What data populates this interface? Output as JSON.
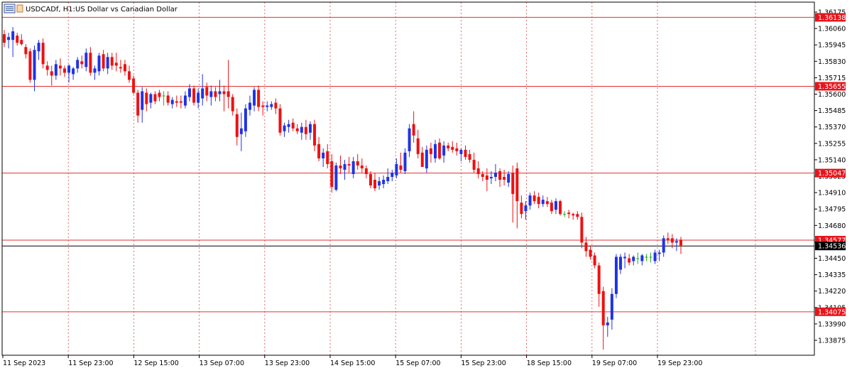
{
  "header": {
    "symbol_label": "USDCADf, H1:",
    "description": "US Dollar vs Canadian Dollar",
    "menu_icon": "chart-window-menu-icon"
  },
  "colors": {
    "bull": "#1f33e6",
    "bear": "#ee1111",
    "doji": "#22aa22",
    "level_line": "#e23030",
    "current_price_line": "#000000",
    "grid": "#e24a4a",
    "frame": "#000000",
    "level_tag_bg": "#e8141b",
    "current_tag_bg": "#000000"
  },
  "chart_data": {
    "type": "candlestick",
    "title": "",
    "xlabel": "",
    "ylabel": "",
    "ylim": [
      1.3379,
      1.3618
    ],
    "yticks": [
      "1.36175",
      "1.36060",
      "1.35945",
      "1.35830",
      "1.35715",
      "1.35600",
      "1.35485",
      "1.35370",
      "1.35255",
      "1.35140",
      "1.35025",
      "1.34910",
      "1.34795",
      "1.34680",
      "1.34565",
      "1.34450",
      "1.34335",
      "1.34220",
      "1.34105",
      "1.33990",
      "1.33875"
    ],
    "xticks": [
      "11 Sep 2023",
      "11 Sep 23:00",
      "12 Sep 15:00",
      "13 Sep 07:00",
      "13 Sep 23:00",
      "14 Sep 15:00",
      "15 Sep 07:00",
      "15 Sep 23:00",
      "18 Sep 15:00",
      "19 Sep 07:00",
      "19 Sep 23:00"
    ],
    "grid": true,
    "levels": [
      "1.36138",
      "1.35655",
      "1.35047",
      "1.34577",
      "1.34075"
    ],
    "current_price": "1.34536",
    "candles": [
      {
        "o": 1.3602,
        "h": 1.3605,
        "l": 1.3593,
        "c": 1.3596
      },
      {
        "o": 1.3598,
        "h": 1.3603,
        "l": 1.3592,
        "c": 1.36
      },
      {
        "o": 1.3598,
        "h": 1.3607,
        "l": 1.3586,
        "c": 1.3604
      },
      {
        "o": 1.3601,
        "h": 1.3603,
        "l": 1.3594,
        "c": 1.3596
      },
      {
        "o": 1.3598,
        "h": 1.3602,
        "l": 1.3594,
        "c": 1.3595
      },
      {
        "o": 1.3593,
        "h": 1.3595,
        "l": 1.3585,
        "c": 1.3588
      },
      {
        "o": 1.359,
        "h": 1.3592,
        "l": 1.3568,
        "c": 1.357
      },
      {
        "o": 1.357,
        "h": 1.3594,
        "l": 1.3562,
        "c": 1.3591
      },
      {
        "o": 1.359,
        "h": 1.3598,
        "l": 1.3584,
        "c": 1.3596
      },
      {
        "o": 1.3596,
        "h": 1.3599,
        "l": 1.3578,
        "c": 1.3581
      },
      {
        "o": 1.358,
        "h": 1.3583,
        "l": 1.3573,
        "c": 1.3577
      },
      {
        "o": 1.3576,
        "h": 1.358,
        "l": 1.3566,
        "c": 1.3573
      },
      {
        "o": 1.3573,
        "h": 1.3584,
        "l": 1.357,
        "c": 1.3581
      },
      {
        "o": 1.358,
        "h": 1.3585,
        "l": 1.3573,
        "c": 1.3578
      },
      {
        "o": 1.3578,
        "h": 1.358,
        "l": 1.3572,
        "c": 1.3575
      },
      {
        "o": 1.3575,
        "h": 1.3581,
        "l": 1.3568,
        "c": 1.358
      },
      {
        "o": 1.3574,
        "h": 1.3579,
        "l": 1.357,
        "c": 1.3578
      },
      {
        "o": 1.3578,
        "h": 1.3586,
        "l": 1.3575,
        "c": 1.3584
      },
      {
        "o": 1.3583,
        "h": 1.3587,
        "l": 1.3578,
        "c": 1.3581
      },
      {
        "o": 1.3579,
        "h": 1.3592,
        "l": 1.3576,
        "c": 1.3589
      },
      {
        "o": 1.3589,
        "h": 1.3593,
        "l": 1.3573,
        "c": 1.3575
      },
      {
        "o": 1.3575,
        "h": 1.358,
        "l": 1.357,
        "c": 1.3578
      },
      {
        "o": 1.3576,
        "h": 1.3589,
        "l": 1.3573,
        "c": 1.3587
      },
      {
        "o": 1.3588,
        "h": 1.3591,
        "l": 1.3576,
        "c": 1.3578
      },
      {
        "o": 1.3578,
        "h": 1.3589,
        "l": 1.3574,
        "c": 1.3586
      },
      {
        "o": 1.3586,
        "h": 1.3589,
        "l": 1.3577,
        "c": 1.358
      },
      {
        "o": 1.3582,
        "h": 1.3589,
        "l": 1.3576,
        "c": 1.358
      },
      {
        "o": 1.3579,
        "h": 1.3584,
        "l": 1.3575,
        "c": 1.3578
      },
      {
        "o": 1.3581,
        "h": 1.3584,
        "l": 1.3573,
        "c": 1.3576
      },
      {
        "o": 1.3576,
        "h": 1.358,
        "l": 1.3568,
        "c": 1.357
      },
      {
        "o": 1.3571,
        "h": 1.3573,
        "l": 1.356,
        "c": 1.3561
      },
      {
        "o": 1.3561,
        "h": 1.3563,
        "l": 1.354,
        "c": 1.3545
      },
      {
        "o": 1.3549,
        "h": 1.3565,
        "l": 1.354,
        "c": 1.3562
      },
      {
        "o": 1.3561,
        "h": 1.3564,
        "l": 1.3548,
        "c": 1.3553
      },
      {
        "o": 1.3554,
        "h": 1.3561,
        "l": 1.355,
        "c": 1.356
      },
      {
        "o": 1.356,
        "h": 1.3562,
        "l": 1.3553,
        "c": 1.3555
      },
      {
        "o": 1.3561,
        "h": 1.3563,
        "l": 1.3555,
        "c": 1.3558
      },
      {
        "o": 1.3559,
        "h": 1.3562,
        "l": 1.3552,
        "c": 1.3559
      },
      {
        "o": 1.3559,
        "h": 1.3562,
        "l": 1.3552,
        "c": 1.3554
      },
      {
        "o": 1.3553,
        "h": 1.3558,
        "l": 1.355,
        "c": 1.3556
      },
      {
        "o": 1.3555,
        "h": 1.3559,
        "l": 1.3551,
        "c": 1.3554
      },
      {
        "o": 1.3555,
        "h": 1.3559,
        "l": 1.355,
        "c": 1.3554
      },
      {
        "o": 1.3552,
        "h": 1.3562,
        "l": 1.355,
        "c": 1.3559
      },
      {
        "o": 1.3558,
        "h": 1.3567,
        "l": 1.3555,
        "c": 1.3564
      },
      {
        "o": 1.3564,
        "h": 1.3566,
        "l": 1.3552,
        "c": 1.3554
      },
      {
        "o": 1.3554,
        "h": 1.3564,
        "l": 1.355,
        "c": 1.3561
      },
      {
        "o": 1.3557,
        "h": 1.3574,
        "l": 1.3552,
        "c": 1.3564
      },
      {
        "o": 1.3565,
        "h": 1.3568,
        "l": 1.3555,
        "c": 1.3559
      },
      {
        "o": 1.3558,
        "h": 1.3566,
        "l": 1.3552,
        "c": 1.3562
      },
      {
        "o": 1.3562,
        "h": 1.3565,
        "l": 1.3555,
        "c": 1.3558
      },
      {
        "o": 1.356,
        "h": 1.357,
        "l": 1.3555,
        "c": 1.3562
      },
      {
        "o": 1.3562,
        "h": 1.3566,
        "l": 1.3548,
        "c": 1.356
      },
      {
        "o": 1.3562,
        "h": 1.3584,
        "l": 1.355,
        "c": 1.3558
      },
      {
        "o": 1.3558,
        "h": 1.356,
        "l": 1.3545,
        "c": 1.3548
      },
      {
        "o": 1.3546,
        "h": 1.355,
        "l": 1.3524,
        "c": 1.353
      },
      {
        "o": 1.3532,
        "h": 1.3547,
        "l": 1.352,
        "c": 1.3536
      },
      {
        "o": 1.3534,
        "h": 1.3553,
        "l": 1.353,
        "c": 1.355
      },
      {
        "o": 1.3549,
        "h": 1.3559,
        "l": 1.3545,
        "c": 1.3554
      },
      {
        "o": 1.3552,
        "h": 1.3565,
        "l": 1.3548,
        "c": 1.3563
      },
      {
        "o": 1.3563,
        "h": 1.3566,
        "l": 1.3548,
        "c": 1.3551
      },
      {
        "o": 1.3552,
        "h": 1.3555,
        "l": 1.3545,
        "c": 1.3551
      },
      {
        "o": 1.3551,
        "h": 1.3555,
        "l": 1.3548,
        "c": 1.3552
      },
      {
        "o": 1.3551,
        "h": 1.3555,
        "l": 1.3549,
        "c": 1.3553
      },
      {
        "o": 1.3554,
        "h": 1.3557,
        "l": 1.3546,
        "c": 1.355
      },
      {
        "o": 1.355,
        "h": 1.3553,
        "l": 1.3531,
        "c": 1.3533
      },
      {
        "o": 1.3534,
        "h": 1.354,
        "l": 1.353,
        "c": 1.3538
      },
      {
        "o": 1.3537,
        "h": 1.3542,
        "l": 1.3533,
        "c": 1.3539
      },
      {
        "o": 1.354,
        "h": 1.3543,
        "l": 1.3534,
        "c": 1.3536
      },
      {
        "o": 1.3536,
        "h": 1.3539,
        "l": 1.3532,
        "c": 1.3534
      },
      {
        "o": 1.3533,
        "h": 1.354,
        "l": 1.3528,
        "c": 1.3537
      },
      {
        "o": 1.3537,
        "h": 1.3542,
        "l": 1.3528,
        "c": 1.3532
      },
      {
        "o": 1.3533,
        "h": 1.3541,
        "l": 1.3528,
        "c": 1.3539
      },
      {
        "o": 1.3539,
        "h": 1.3542,
        "l": 1.352,
        "c": 1.3524
      },
      {
        "o": 1.3525,
        "h": 1.353,
        "l": 1.3513,
        "c": 1.3515
      },
      {
        "o": 1.3515,
        "h": 1.3522,
        "l": 1.3509,
        "c": 1.3519
      },
      {
        "o": 1.352,
        "h": 1.3525,
        "l": 1.3508,
        "c": 1.3511
      },
      {
        "o": 1.3513,
        "h": 1.3518,
        "l": 1.3491,
        "c": 1.3495
      },
      {
        "o": 1.3493,
        "h": 1.3512,
        "l": 1.3492,
        "c": 1.351
      },
      {
        "o": 1.351,
        "h": 1.3517,
        "l": 1.3504,
        "c": 1.3508
      },
      {
        "o": 1.3507,
        "h": 1.3514,
        "l": 1.35,
        "c": 1.3511
      },
      {
        "o": 1.3511,
        "h": 1.3516,
        "l": 1.3505,
        "c": 1.351
      },
      {
        "o": 1.3504,
        "h": 1.3516,
        "l": 1.3501,
        "c": 1.3513
      },
      {
        "o": 1.3513,
        "h": 1.3518,
        "l": 1.3507,
        "c": 1.351
      },
      {
        "o": 1.351,
        "h": 1.3515,
        "l": 1.3505,
        "c": 1.3508
      },
      {
        "o": 1.3508,
        "h": 1.351,
        "l": 1.3501,
        "c": 1.3504
      },
      {
        "o": 1.3504,
        "h": 1.3506,
        "l": 1.3494,
        "c": 1.3496
      },
      {
        "o": 1.35,
        "h": 1.3505,
        "l": 1.3492,
        "c": 1.3494
      },
      {
        "o": 1.3496,
        "h": 1.3502,
        "l": 1.3493,
        "c": 1.3499
      },
      {
        "o": 1.3497,
        "h": 1.3503,
        "l": 1.3494,
        "c": 1.35
      },
      {
        "o": 1.3499,
        "h": 1.3508,
        "l": 1.3497,
        "c": 1.3502
      },
      {
        "o": 1.3502,
        "h": 1.3507,
        "l": 1.3499,
        "c": 1.3505
      },
      {
        "o": 1.3503,
        "h": 1.3515,
        "l": 1.3501,
        "c": 1.3511
      },
      {
        "o": 1.351,
        "h": 1.3519,
        "l": 1.3505,
        "c": 1.3507
      },
      {
        "o": 1.3506,
        "h": 1.3522,
        "l": 1.3504,
        "c": 1.3519
      },
      {
        "o": 1.352,
        "h": 1.3539,
        "l": 1.3516,
        "c": 1.3536
      },
      {
        "o": 1.3539,
        "h": 1.3548,
        "l": 1.3526,
        "c": 1.3531
      },
      {
        "o": 1.3529,
        "h": 1.3535,
        "l": 1.3515,
        "c": 1.3518
      },
      {
        "o": 1.3519,
        "h": 1.3523,
        "l": 1.3509,
        "c": 1.3509
      },
      {
        "o": 1.3508,
        "h": 1.3524,
        "l": 1.3505,
        "c": 1.3521
      },
      {
        "o": 1.3522,
        "h": 1.3526,
        "l": 1.3512,
        "c": 1.3518
      },
      {
        "o": 1.3515,
        "h": 1.3528,
        "l": 1.3512,
        "c": 1.3525
      },
      {
        "o": 1.3526,
        "h": 1.3529,
        "l": 1.3514,
        "c": 1.3515
      },
      {
        "o": 1.3517,
        "h": 1.3527,
        "l": 1.3512,
        "c": 1.3524
      },
      {
        "o": 1.3524,
        "h": 1.3526,
        "l": 1.352,
        "c": 1.3522
      },
      {
        "o": 1.3523,
        "h": 1.3527,
        "l": 1.3519,
        "c": 1.3521
      },
      {
        "o": 1.3522,
        "h": 1.3526,
        "l": 1.3517,
        "c": 1.352
      },
      {
        "o": 1.3518,
        "h": 1.3522,
        "l": 1.3513,
        "c": 1.3521
      },
      {
        "o": 1.3521,
        "h": 1.3524,
        "l": 1.3514,
        "c": 1.3516
      },
      {
        "o": 1.3518,
        "h": 1.3521,
        "l": 1.3512,
        "c": 1.3514
      },
      {
        "o": 1.3514,
        "h": 1.3519,
        "l": 1.3505,
        "c": 1.3507
      },
      {
        "o": 1.3508,
        "h": 1.3513,
        "l": 1.3501,
        "c": 1.3504
      },
      {
        "o": 1.3504,
        "h": 1.3506,
        "l": 1.3499,
        "c": 1.3502
      },
      {
        "o": 1.3503,
        "h": 1.3508,
        "l": 1.3492,
        "c": 1.35
      },
      {
        "o": 1.3501,
        "h": 1.3506,
        "l": 1.3497,
        "c": 1.3502
      },
      {
        "o": 1.3502,
        "h": 1.3511,
        "l": 1.3499,
        "c": 1.3505
      },
      {
        "o": 1.3506,
        "h": 1.3508,
        "l": 1.3495,
        "c": 1.35
      },
      {
        "o": 1.3502,
        "h": 1.3507,
        "l": 1.3496,
        "c": 1.35
      },
      {
        "o": 1.3498,
        "h": 1.3506,
        "l": 1.3495,
        "c": 1.3504
      },
      {
        "o": 1.3505,
        "h": 1.351,
        "l": 1.347,
        "c": 1.349
      },
      {
        "o": 1.3508,
        "h": 1.3512,
        "l": 1.3466,
        "c": 1.3485
      },
      {
        "o": 1.3484,
        "h": 1.3489,
        "l": 1.3473,
        "c": 1.3476
      },
      {
        "o": 1.3478,
        "h": 1.3485,
        "l": 1.3472,
        "c": 1.3482
      },
      {
        "o": 1.3482,
        "h": 1.3491,
        "l": 1.3479,
        "c": 1.3489
      },
      {
        "o": 1.3489,
        "h": 1.3492,
        "l": 1.3483,
        "c": 1.3485
      },
      {
        "o": 1.3488,
        "h": 1.3491,
        "l": 1.348,
        "c": 1.3483
      },
      {
        "o": 1.3483,
        "h": 1.3489,
        "l": 1.3481,
        "c": 1.3486
      },
      {
        "o": 1.3485,
        "h": 1.3488,
        "l": 1.3481,
        "c": 1.3483
      },
      {
        "o": 1.3484,
        "h": 1.3486,
        "l": 1.3476,
        "c": 1.3478
      },
      {
        "o": 1.3479,
        "h": 1.3487,
        "l": 1.3476,
        "c": 1.3485
      },
      {
        "o": 1.3485,
        "h": 1.3486,
        "l": 1.3475,
        "c": 1.3476
      },
      {
        "o": 1.3476,
        "h": 1.3478,
        "l": 1.3474,
        "c": 1.3476
      },
      {
        "o": 1.3477,
        "h": 1.3479,
        "l": 1.3473,
        "c": 1.3476
      },
      {
        "o": 1.3476,
        "h": 1.3477,
        "l": 1.3472,
        "c": 1.3475
      },
      {
        "o": 1.3476,
        "h": 1.3478,
        "l": 1.3472,
        "c": 1.3474
      },
      {
        "o": 1.3474,
        "h": 1.3477,
        "l": 1.3452,
        "c": 1.3456
      },
      {
        "o": 1.3456,
        "h": 1.346,
        "l": 1.3446,
        "c": 1.345
      },
      {
        "o": 1.3451,
        "h": 1.3454,
        "l": 1.3444,
        "c": 1.3446
      },
      {
        "o": 1.3447,
        "h": 1.3449,
        "l": 1.3438,
        "c": 1.344
      },
      {
        "o": 1.344,
        "h": 1.3442,
        "l": 1.3411,
        "c": 1.342
      },
      {
        "o": 1.3422,
        "h": 1.3425,
        "l": 1.3381,
        "c": 1.3398
      },
      {
        "o": 1.3398,
        "h": 1.3404,
        "l": 1.339,
        "c": 1.34
      },
      {
        "o": 1.3402,
        "h": 1.3424,
        "l": 1.3395,
        "c": 1.342
      },
      {
        "o": 1.342,
        "h": 1.3448,
        "l": 1.3417,
        "c": 1.3446
      },
      {
        "o": 1.3437,
        "h": 1.3448,
        "l": 1.3434,
        "c": 1.3446
      },
      {
        "o": 1.3445,
        "h": 1.3449,
        "l": 1.3438,
        "c": 1.3446
      },
      {
        "o": 1.3445,
        "h": 1.3448,
        "l": 1.344,
        "c": 1.3442
      },
      {
        "o": 1.3443,
        "h": 1.3447,
        "l": 1.344,
        "c": 1.3446
      },
      {
        "o": 1.3445,
        "h": 1.3449,
        "l": 1.3441,
        "c": 1.3445
      },
      {
        "o": 1.3443,
        "h": 1.3448,
        "l": 1.344,
        "c": 1.3447
      },
      {
        "o": 1.3446,
        "h": 1.3448,
        "l": 1.3443,
        "c": 1.3446
      },
      {
        "o": 1.3446,
        "h": 1.3449,
        "l": 1.3442,
        "c": 1.3446
      },
      {
        "o": 1.3443,
        "h": 1.3451,
        "l": 1.3441,
        "c": 1.3449
      },
      {
        "o": 1.3448,
        "h": 1.3451,
        "l": 1.3443,
        "c": 1.3449
      },
      {
        "o": 1.3449,
        "h": 1.3461,
        "l": 1.3446,
        "c": 1.3459
      },
      {
        "o": 1.3459,
        "h": 1.3463,
        "l": 1.3455,
        "c": 1.3458
      },
      {
        "o": 1.3459,
        "h": 1.3462,
        "l": 1.3452,
        "c": 1.3456
      },
      {
        "o": 1.3456,
        "h": 1.3459,
        "l": 1.345,
        "c": 1.3457
      },
      {
        "o": 1.3458,
        "h": 1.346,
        "l": 1.3448,
        "c": 1.3454
      }
    ]
  }
}
